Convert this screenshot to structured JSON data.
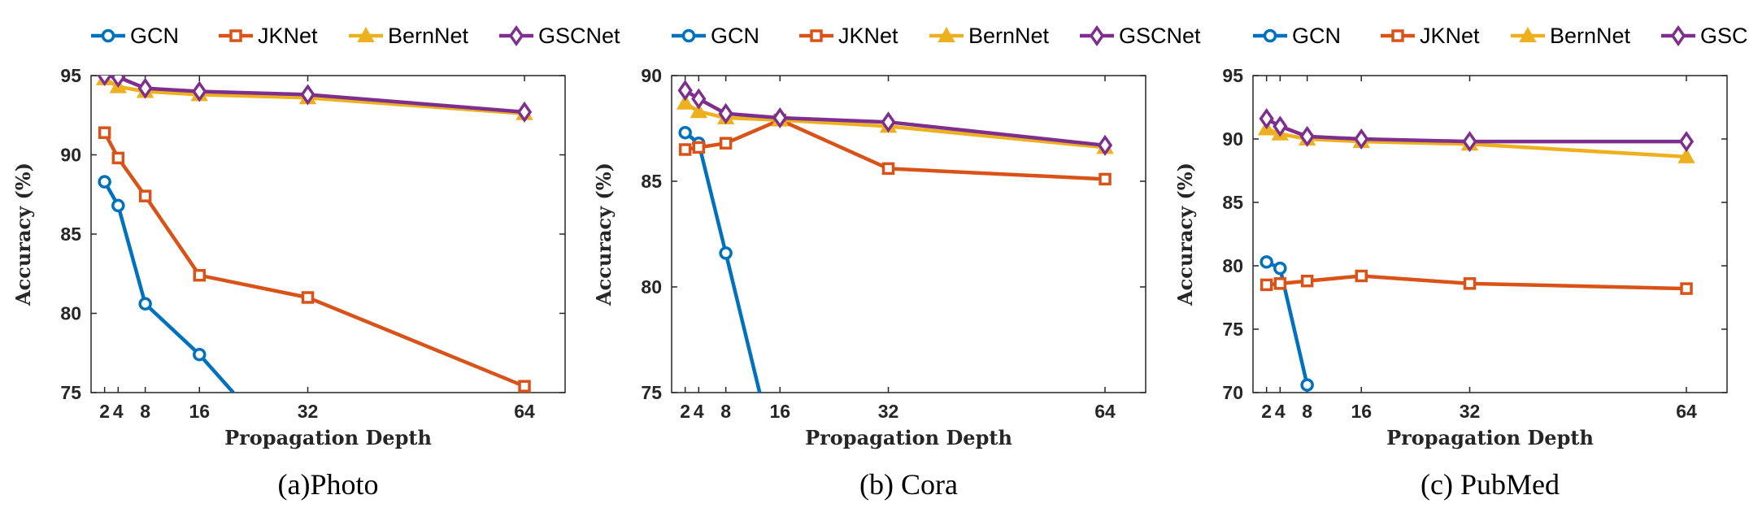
{
  "colors": {
    "GCN": "#0072BD",
    "JKNet": "#D95319",
    "BernNet": "#EDB120",
    "GSCNet": "#7E2F8E"
  },
  "chart_data": [
    {
      "type": "line",
      "caption": "(a)Photo",
      "xlabel": "Propagation Depth",
      "ylabel": "Accuracy (%)",
      "xticks": [
        2,
        4,
        8,
        16,
        32,
        64
      ],
      "xtick_labels": [
        "2",
        "4",
        "8",
        "16",
        "32",
        "64"
      ],
      "xlim": [
        0,
        70
      ],
      "ylim": [
        75,
        95
      ],
      "yticks": [
        75,
        80,
        85,
        90,
        95
      ],
      "legend": "top",
      "series": [
        {
          "name": "GCN",
          "marker": "circle",
          "x": [
            2,
            4,
            8,
            16,
            21
          ],
          "y": [
            88.3,
            86.8,
            80.6,
            77.4,
            75
          ]
        },
        {
          "name": "JKNet",
          "marker": "square",
          "x": [
            2,
            4,
            8,
            16,
            32,
            64
          ],
          "y": [
            91.4,
            89.8,
            87.4,
            82.4,
            81.0,
            75.4
          ]
        },
        {
          "name": "BernNet",
          "marker": "triangle",
          "x": [
            2,
            4,
            8,
            16,
            32,
            64
          ],
          "y": [
            94.8,
            94.3,
            94.0,
            93.8,
            93.6,
            92.6
          ]
        },
        {
          "name": "GSCNet",
          "marker": "diamond",
          "x": [
            2,
            4,
            8,
            16,
            32,
            64
          ],
          "y": [
            95.0,
            94.9,
            94.2,
            94.0,
            93.8,
            92.7
          ]
        }
      ]
    },
    {
      "type": "line",
      "caption": "(b) Cora",
      "xlabel": "Propagation Depth",
      "ylabel": "Accuracy (%)",
      "xticks": [
        2,
        4,
        8,
        16,
        32,
        64
      ],
      "xtick_labels": [
        "2",
        "4",
        "8",
        "16",
        "32",
        "64"
      ],
      "xlim": [
        0,
        70
      ],
      "ylim": [
        75,
        90
      ],
      "yticks": [
        75,
        80,
        85,
        90
      ],
      "legend": "top",
      "series": [
        {
          "name": "GCN",
          "marker": "circle",
          "x": [
            2,
            4,
            8,
            13
          ],
          "y": [
            87.3,
            86.8,
            81.6,
            75
          ]
        },
        {
          "name": "JKNet",
          "marker": "square",
          "x": [
            2,
            4,
            8,
            16,
            32,
            64
          ],
          "y": [
            86.5,
            86.6,
            86.8,
            87.9,
            85.6,
            85.1
          ]
        },
        {
          "name": "BernNet",
          "marker": "triangle",
          "x": [
            2,
            4,
            8,
            16,
            32,
            64
          ],
          "y": [
            88.7,
            88.3,
            88.0,
            87.9,
            87.6,
            86.6
          ]
        },
        {
          "name": "GSCNet",
          "marker": "diamond",
          "x": [
            2,
            4,
            8,
            16,
            32,
            64
          ],
          "y": [
            89.3,
            88.9,
            88.2,
            88.0,
            87.8,
            86.7
          ]
        }
      ]
    },
    {
      "type": "line",
      "caption": "(c) PubMed",
      "xlabel": "Propagation Depth",
      "ylabel": "Accuracy (%)",
      "xticks": [
        2,
        4,
        8,
        16,
        32,
        64
      ],
      "xtick_labels": [
        "2",
        "4",
        "8",
        "16",
        "32",
        "64"
      ],
      "xlim": [
        0,
        70
      ],
      "ylim": [
        70,
        95
      ],
      "yticks": [
        70,
        75,
        80,
        85,
        90,
        95
      ],
      "legend": "top",
      "series": [
        {
          "name": "GCN",
          "marker": "circle",
          "x": [
            2,
            4,
            8
          ],
          "y": [
            80.3,
            79.8,
            70.6
          ]
        },
        {
          "name": "JKNet",
          "marker": "square",
          "x": [
            2,
            4,
            8,
            16,
            32,
            64
          ],
          "y": [
            78.5,
            78.6,
            78.8,
            79.2,
            78.6,
            78.2
          ]
        },
        {
          "name": "BernNet",
          "marker": "triangle",
          "x": [
            2,
            4,
            8,
            16,
            32,
            64
          ],
          "y": [
            90.8,
            90.4,
            90.0,
            89.8,
            89.6,
            88.6
          ]
        },
        {
          "name": "GSCNet",
          "marker": "diamond",
          "x": [
            2,
            4,
            8,
            16,
            32,
            64
          ],
          "y": [
            91.6,
            91.0,
            90.2,
            90.0,
            89.8,
            89.8
          ]
        }
      ]
    }
  ]
}
